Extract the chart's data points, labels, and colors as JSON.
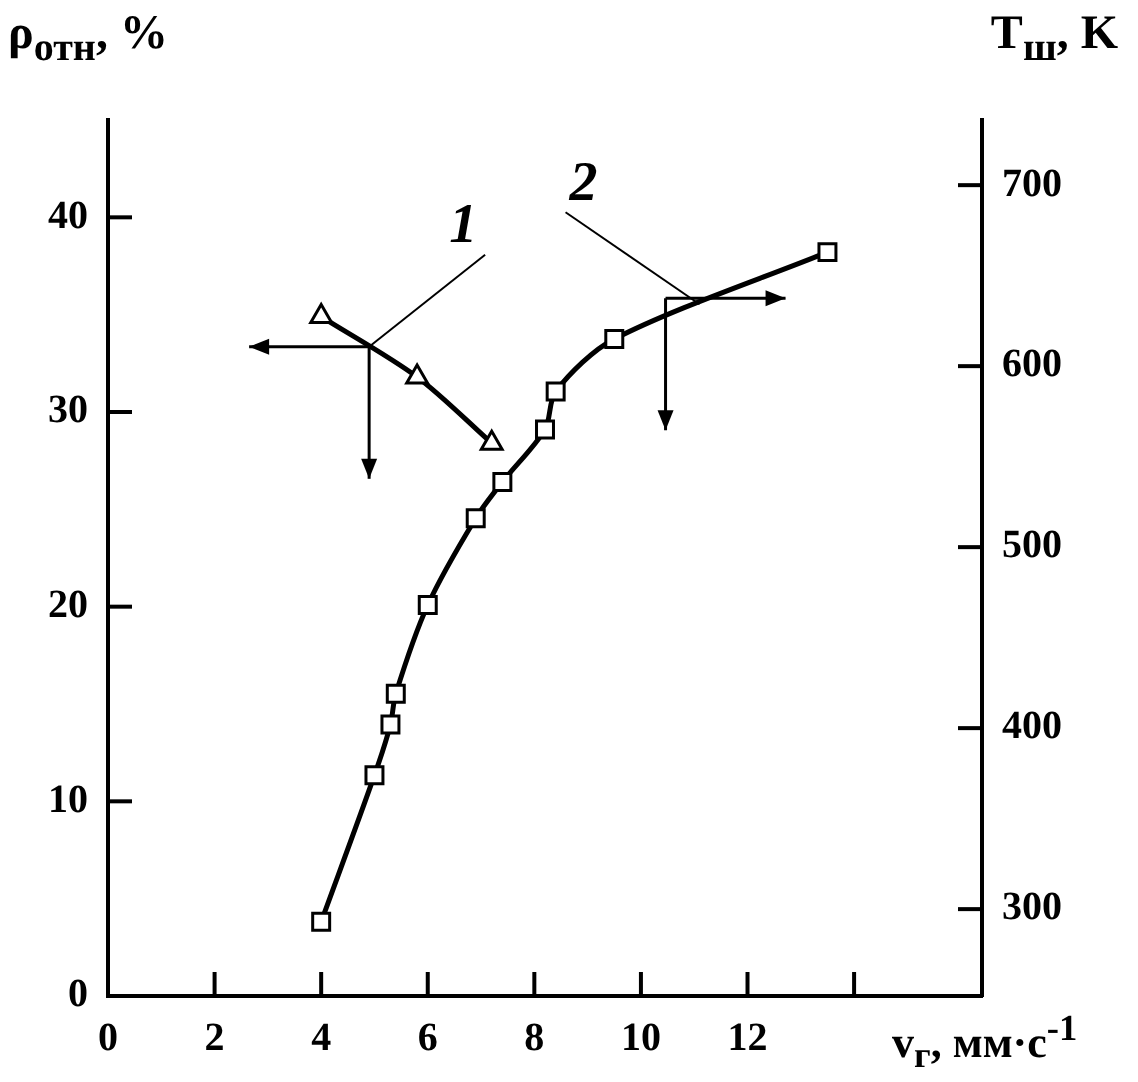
{
  "chart_data": {
    "type": "line",
    "xlabel": "v$_{г}$, мм·с$^{-1}$",
    "ylabel": "ρ$_{отн}$, %",
    "y2label": "T$_{ш}$, K",
    "xlim": [
      0,
      16.4
    ],
    "xticks": [
      0,
      2,
      4,
      6,
      8,
      10,
      12,
      {
        "value": 14,
        "label": null
      }
    ],
    "ylim": [
      0,
      45
    ],
    "yticks": [
      0,
      10,
      20,
      30,
      40
    ],
    "y2lim": [
      252,
      736
    ],
    "y2ticks": [
      300,
      400,
      500,
      600,
      700
    ],
    "grid": false,
    "series": [
      {
        "name": "1",
        "color": "#000000",
        "marker": "triangle",
        "x": [
          4.0,
          5.8,
          7.2
        ],
        "values": [
          34.9,
          31.8,
          28.4
        ]
      },
      {
        "name": "2",
        "color": "#000000",
        "marker": "square",
        "axis": "y2",
        "x": [
          4.0,
          5.0,
          5.3,
          5.4,
          6.0,
          6.9,
          7.4,
          8.2,
          8.4,
          9.5,
          13.5
        ],
        "values": [
          293,
          374,
          402,
          419,
          468,
          516,
          536,
          565,
          586,
          615,
          663
        ]
      }
    ]
  }
}
